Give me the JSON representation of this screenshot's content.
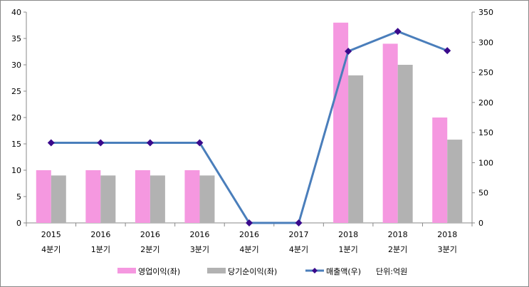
{
  "chart_data": {
    "type": "bar+line",
    "categories": [
      [
        "2015",
        "4분기"
      ],
      [
        "2016",
        "1분기"
      ],
      [
        "2016",
        "2분기"
      ],
      [
        "2016",
        "3분기"
      ],
      [
        "2016",
        "4분기"
      ],
      [
        "2017",
        "4분기"
      ],
      [
        "2018",
        "1분기"
      ],
      [
        "2018",
        "2분기"
      ],
      [
        "2018",
        "3분기"
      ]
    ],
    "series": [
      {
        "name": "영업이익(좌)",
        "type": "bar",
        "axis": "left",
        "color": "#f598e0",
        "values": [
          10,
          10,
          10,
          10,
          0,
          0,
          38,
          34,
          20
        ]
      },
      {
        "name": "당기순이익(좌)",
        "type": "bar",
        "axis": "left",
        "color": "#b2b2b2",
        "values": [
          9,
          9,
          9,
          9,
          0,
          0,
          28,
          30,
          15.8
        ]
      },
      {
        "name": "매출액(우)",
        "type": "line",
        "axis": "right",
        "color": "#4a7ebb",
        "marker_color": "#3a0a8c",
        "values": [
          133,
          133,
          133,
          133,
          0,
          0,
          285,
          318,
          286
        ]
      }
    ],
    "left_axis": {
      "min": 0,
      "max": 40,
      "step": 5,
      "ticks": [
        "0",
        "5",
        "10",
        "15",
        "20",
        "25",
        "30",
        "35",
        "40"
      ]
    },
    "right_axis": {
      "min": 0,
      "max": 350,
      "step": 50,
      "ticks": [
        "0",
        "50",
        "100",
        "150",
        "200",
        "250",
        "300",
        "350"
      ]
    },
    "legend": {
      "placement": "bottom",
      "unit_note": "단위:억원"
    },
    "grid": false
  }
}
